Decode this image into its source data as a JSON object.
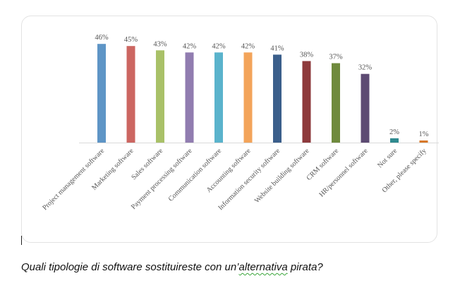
{
  "chart_data": {
    "type": "bar",
    "categories": [
      "Project management software",
      "Marketing software",
      "Sales software",
      "Payment processing software",
      "Communication software",
      "Accounting software",
      "Information security software",
      "Website building software",
      "CRM software",
      "HR/personnel software",
      "Not sure",
      "Other, please specify"
    ],
    "values": [
      46,
      45,
      43,
      42,
      42,
      42,
      41,
      38,
      37,
      32,
      2,
      1
    ],
    "value_labels": [
      "46%",
      "45%",
      "43%",
      "42%",
      "42%",
      "42%",
      "41%",
      "38%",
      "37%",
      "32%",
      "2%",
      "1%"
    ],
    "colors": [
      "#5e95c6",
      "#cc6661",
      "#a9c168",
      "#917db0",
      "#5ab3cc",
      "#f3a45a",
      "#3b5f8b",
      "#8e3a3c",
      "#6f8a3d",
      "#5d4b73",
      "#2f8a8f",
      "#d7782a"
    ],
    "ylim": [
      0,
      50
    ],
    "grid": false,
    "legend": "none",
    "title": "",
    "xlabel": "",
    "ylabel": ""
  },
  "caption": {
    "before": "Quali tipologie di software sostituireste con un’",
    "flagged": "alternativa",
    "after": " pirata?"
  }
}
